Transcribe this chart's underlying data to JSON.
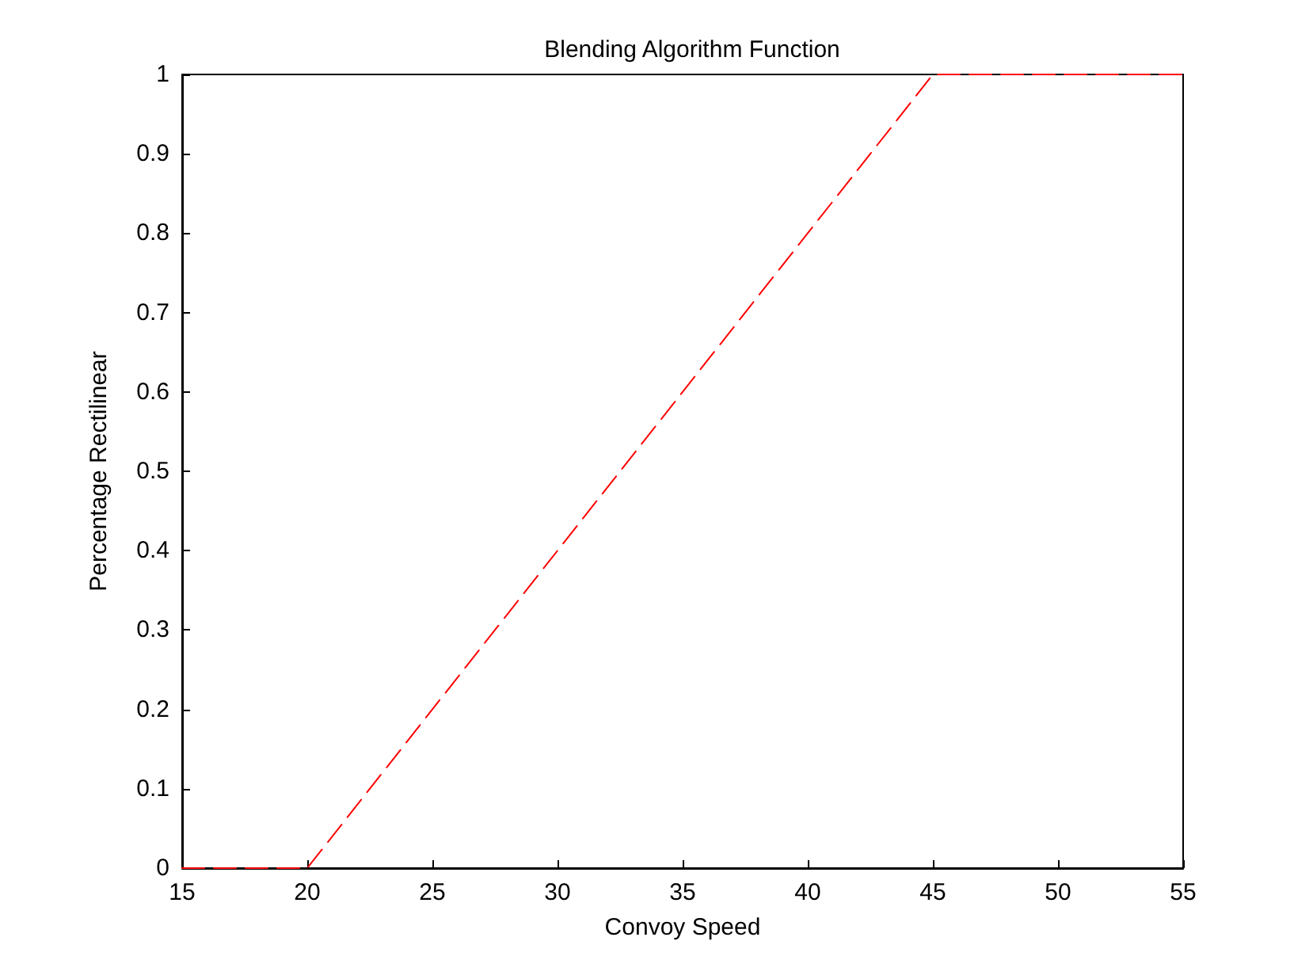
{
  "chart_data": {
    "type": "line",
    "title": "Blending Algorithm Function",
    "xlabel": "Convoy Speed",
    "ylabel": "Percentage Rectilinear",
    "x": [
      15,
      20,
      45,
      55
    ],
    "series": [
      {
        "color": "#ff0000",
        "values": [
          0,
          0,
          1,
          1
        ]
      }
    ],
    "xlim": [
      15,
      55
    ],
    "xticks": [
      15,
      20,
      25,
      30,
      35,
      40,
      45,
      50,
      55
    ],
    "ylim": [
      0,
      1
    ],
    "yticks": [
      0,
      0.1,
      0.2,
      0.3,
      0.4,
      0.5,
      0.6,
      0.7,
      0.8,
      0.9,
      1
    ],
    "grid": false,
    "marker": "none",
    "line_style": "dashed"
  }
}
